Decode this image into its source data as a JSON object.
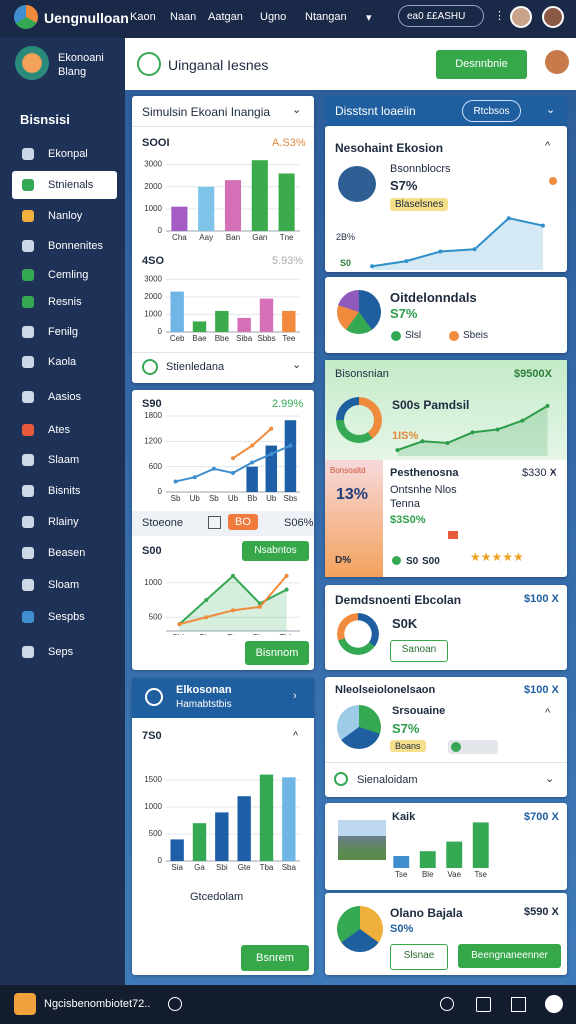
{
  "top_bar": {
    "brand": "Uengnulloan",
    "nav": [
      "Kaon",
      "Naan",
      "Aatgan",
      "Ugno",
      "Ntangan"
    ],
    "search": "ea0 ££ASHU"
  },
  "sidebar": {
    "brand": [
      "Ekonoani",
      "Blang"
    ],
    "heading": "Bisnsisi",
    "items": [
      "Ekonpal",
      "Stnienals",
      "Nanloy",
      "Bonnenites",
      "Cemling",
      "Resnis",
      "Fenilg",
      "Kaola",
      "Aasios",
      "Ates",
      "Slaam",
      "Bisnits",
      "Rlainy",
      "Beasen",
      "Sloam",
      "Sespbs",
      "Seps"
    ]
  },
  "header": {
    "title": "Uinganal Iesnes",
    "button": "Desnnbnie"
  },
  "left": {
    "card1": {
      "title": "Simulsin Ekoani Inangia",
      "chart_a": {
        "type": "bar",
        "headline": "SOOI",
        "change": "A.S3%",
        "categories": [
          "Cha",
          "Aay",
          "Ban",
          "Gan",
          "Tne"
        ],
        "series": [
          {
            "colors": [
              "#a45cc4",
              "#7ec3e8",
              "#d46fb8",
              "#3aaa4a",
              "#3aaa4a"
            ],
            "values": [
              1100,
              2000,
              2300,
              3200,
              2600
            ]
          }
        ],
        "ylim": [
          0,
          3300
        ],
        "yticks": [
          0,
          1000,
          2000,
          3000
        ],
        "grid": true
      },
      "chart_b": {
        "type": "bar",
        "headline": "4SO",
        "change": "5.93%",
        "categories": [
          "Ceb",
          "Bae",
          "Bbe",
          "Siba",
          "Sbbs",
          "Tee"
        ],
        "series": [
          {
            "colors": [
              "#6fb6e6",
              "#3aaa4a",
              "#3aaa4a",
              "#d46fb8",
              "#d46fb8",
              "#f08a3c"
            ],
            "values": [
              2300,
              600,
              1200,
              800,
              1900,
              1200
            ]
          }
        ],
        "ylim": [
          0,
          3300
        ],
        "yticks": [
          0,
          1000,
          2000,
          3000
        ],
        "grid": true
      },
      "footer": "Stienledana"
    },
    "card2": {
      "chart": {
        "type": "combo",
        "headline": "S90",
        "change": "2.99%",
        "categories": [
          "Sb",
          "Ub",
          "Sb",
          "Ub",
          "Bb",
          "Ub",
          "Sbs"
        ],
        "series": [
          {
            "color": "#1f5fa8",
            "values": [
              null,
              null,
              null,
              null,
              600,
              1100,
              1700
            ]
          },
          {
            "color": "#3f8fd0",
            "values": [
              250,
              350,
              550,
              450,
              700,
              900,
              1100
            ]
          },
          {
            "color": "#f08a3c",
            "values": [
              null,
              null,
              null,
              800,
              1100,
              1500,
              null
            ]
          }
        ],
        "ylim": [
          0,
          1800
        ],
        "yticks": [
          0,
          600,
          1200,
          1800
        ],
        "grid": true
      },
      "row": [
        "Stoeone",
        "BO",
        "S06%"
      ]
    },
    "card3": {
      "headline": "S00",
      "button": "Nsabntos",
      "chart": {
        "type": "line",
        "area": true,
        "categories": [
          "Sbb",
          "Sba",
          "Bts",
          "Sbe",
          "Tbb"
        ],
        "series": [
          {
            "color": "#34a853",
            "values": [
              400,
              750,
              1100,
              700,
              900
            ]
          },
          {
            "color": "#f08a3c",
            "values": [
              400,
              500,
              600,
              650,
              1100
            ]
          }
        ],
        "ylim": [
          300,
          1200
        ],
        "yticks": [
          500,
          1000
        ],
        "grid": true
      },
      "footer_button": "Bisnnom"
    },
    "card4": {
      "title": "Elkosonan",
      "subtitle": "Hamabtstbis",
      "headline": "7S0",
      "chart": {
        "type": "bar",
        "categories": [
          "Sia",
          "Ga",
          "Sbi",
          "Gte",
          "Tba",
          "Sba"
        ],
        "series": [
          {
            "colors": [
              "#1f5fa8",
              "#34a853",
              "#1f5fa8",
              "#1f5fa8",
              "#34a853",
              "#6fb6e6"
            ],
            "values": [
              400,
              700,
              900,
              1200,
              1600,
              1550
            ]
          }
        ],
        "ylim": [
          0,
          2000
        ],
        "yticks": [
          0,
          500,
          1000,
          1500
        ],
        "grid": true
      },
      "chart_title": "Gtcedolam",
      "button": "Bsnrem"
    }
  },
  "right": {
    "bar": {
      "title": "Disstsnt loaeiin",
      "button": "Rtcbsos"
    },
    "card1": {
      "title": "Nesohaint Ekosion",
      "name": "Bsonnblocrs",
      "percent": "S7%",
      "badge": "Blaselsnes",
      "axis_labels": [
        "2B%",
        "S0"
      ],
      "chart": {
        "type": "line",
        "area": true,
        "categories": [
          null,
          null,
          null,
          null,
          null,
          null
        ],
        "series": [
          {
            "color": "#2f8fc8",
            "values": [
              5,
              12,
              25,
              28,
              70,
              60
            ]
          }
        ],
        "ylim": [
          0,
          100
        ]
      }
    },
    "card2": {
      "title": "Oitdelonndals",
      "percent": "S7%",
      "legend": [
        "Slsl",
        "Sbeis"
      ]
    },
    "card3": {
      "title": "Bisonsnian",
      "amount": "$9500X",
      "name": "S00s Pamdsil",
      "percent": "1IS%",
      "chart": {
        "type": "line",
        "area": true,
        "categories": [
          null,
          null,
          null,
          null,
          null,
          null,
          null
        ],
        "series": [
          {
            "color": "#2e9d4a",
            "values": [
              10,
              25,
              22,
              40,
              45,
              60,
              85
            ]
          }
        ],
        "ylim": [
          0,
          100
        ]
      }
    },
    "card4": {
      "tag": "Bonsoaltd",
      "big": "13%",
      "small": "D%",
      "title": "Pesthenosna",
      "lines": [
        "Ontsnhe Nlos",
        "Tenna"
      ],
      "percent": "$3S0%",
      "amount": "$330 X",
      "footer": [
        "S0",
        "S00"
      ]
    },
    "card5": {
      "title": "Demdsnoenti Ebcolan",
      "amount": "$100 X",
      "value": "S0K",
      "button": "Sanoan"
    },
    "card6": {
      "title": "Nleolseiolonelsaon",
      "amount": "$100 X",
      "name": "Srsouaine",
      "percent": "S7%",
      "badge": "Boans",
      "footer": "Sienaloidam"
    },
    "card7": {
      "title": "Kaik",
      "amount": "$700 X",
      "chart": {
        "type": "bar",
        "categories": [
          "Tse",
          "Ble",
          "Vae",
          "Tse"
        ],
        "series": [
          {
            "colors": [
              "#3f8fd0",
              "#34a853",
              "#34a853",
              "#34a853"
            ],
            "values": [
              250,
              350,
              550,
              950
            ]
          }
        ],
        "ylim": [
          0,
          1000
        ]
      }
    },
    "card8": {
      "title": "Olano Bajala",
      "amount": "$590 X",
      "percent": "S0%",
      "buttons": [
        "Slsnae",
        "Beengnaneenner"
      ]
    }
  },
  "bottom_bar": {
    "text": "Ngcisbenombiotet72.."
  }
}
